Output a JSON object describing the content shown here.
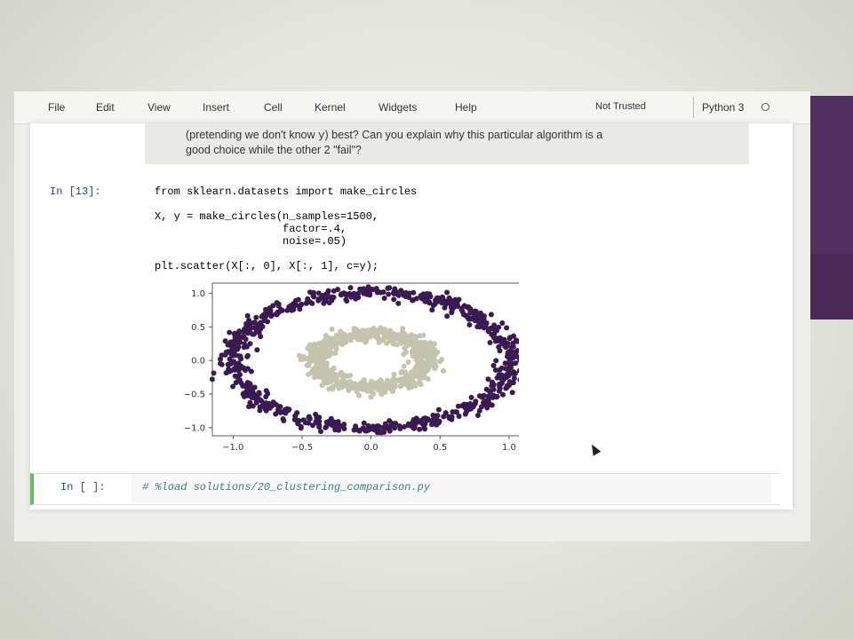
{
  "menubar": {
    "items": [
      "File",
      "Edit",
      "View",
      "Insert",
      "Cell",
      "Kernel",
      "Widgets",
      "Help"
    ],
    "trust_status": "Not Trusted",
    "kernel_name": "Python 3"
  },
  "markdown_cell": {
    "line1_a": "(pretending we don't know ",
    "line1_code": "y",
    "line1_b": ") best? Can you explain why this particular algorithm is a",
    "line2": "good choice while the other 2 \"fail\"?"
  },
  "code_cell": {
    "prompt": "In [13]:",
    "lines": [
      "from sklearn.datasets import make_circles",
      "",
      "X, y = make_circles(n_samples=1500,",
      "                    factor=.4,",
      "                    noise=.05)",
      "",
      "plt.scatter(X[:, 0], X[:, 1], c=y);"
    ]
  },
  "empty_cell": {
    "prompt": "In [ ]:",
    "comment": "# %load solutions/20_clustering_comparison.py"
  },
  "colors": {
    "outer_ring": "#3b1a52",
    "inner_ring": "#c3c4ae",
    "cell_prompt": "#303f9f",
    "sidebar_purple": "#4a2a55"
  },
  "chart_data": {
    "type": "scatter",
    "title": "",
    "xlabel": "",
    "ylabel": "",
    "xlim": [
      -1.15,
      1.2
    ],
    "ylim": [
      -1.12,
      1.15
    ],
    "x_ticks": [
      "−1.0",
      "−0.5",
      "0.0",
      "0.5",
      "1.0"
    ],
    "x_tick_values": [
      -1.0,
      -0.5,
      0.0,
      0.5,
      1.0
    ],
    "y_ticks": [
      "1.0",
      "0.5",
      "0.0",
      "−0.5",
      "−1.0"
    ],
    "y_tick_values": [
      1.0,
      0.5,
      0.0,
      -0.5,
      -1.0
    ],
    "grid": false,
    "series": [
      {
        "class": 0,
        "shape": "ring",
        "center": [
          0.0,
          0.0
        ],
        "radius": 1.0,
        "noise": 0.05,
        "n_points": 750,
        "color": "#3b1a52"
      },
      {
        "class": 1,
        "shape": "ring",
        "center": [
          0.0,
          0.0
        ],
        "radius": 0.4,
        "noise": 0.05,
        "n_points": 750,
        "color": "#c3c4ae"
      }
    ]
  }
}
